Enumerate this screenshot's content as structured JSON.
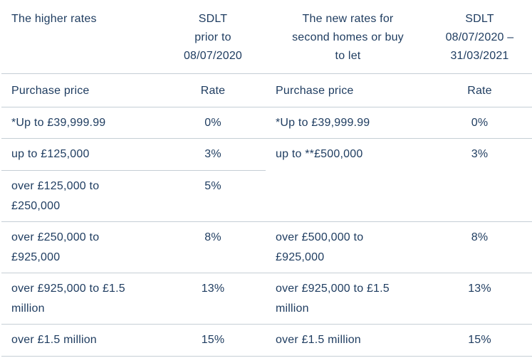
{
  "theme": {
    "background": "#ffffff",
    "text_color": "#1d3b5f",
    "divider_color": "#c5ced5"
  },
  "tables": {
    "left": {
      "title": "The higher rates",
      "period_header": "SDLT\nprior to\n08/07/2020",
      "price_column_header": "Purchase price",
      "rate_column_header": "Rate",
      "rows": [
        {
          "price": "*Up to £39,999.99",
          "rate": "0%"
        },
        {
          "price": "up to £125,000",
          "rate": "3%"
        },
        {
          "price": "over £125,000 to\n£250,000",
          "rate": "5%"
        },
        {
          "price": "over £250,000 to\n£925,000",
          "rate": "8%"
        },
        {
          "price": "over £925,000 to £1.5\nmillion",
          "rate": "13%"
        },
        {
          "price": "over £1.5 million",
          "rate": "15%"
        }
      ]
    },
    "right": {
      "title": "The new rates for\nsecond homes or buy\nto let",
      "period_header": "SDLT\n08/07/2020 –\n31/03/2021",
      "price_column_header": "Purchase price",
      "rate_column_header": "Rate",
      "rows": [
        {
          "price": "*Up to £39,999.99",
          "rate": "0%"
        },
        {
          "price": "up to **£500,000",
          "rate": "3%",
          "spans_rows": 2
        },
        {
          "price": "over £500,000 to\n£925,000",
          "rate": "8%"
        },
        {
          "price": "over £925,000 to £1.5\nmillion",
          "rate": "13%"
        },
        {
          "price": "over £1.5 million",
          "rate": "15%"
        }
      ]
    }
  }
}
